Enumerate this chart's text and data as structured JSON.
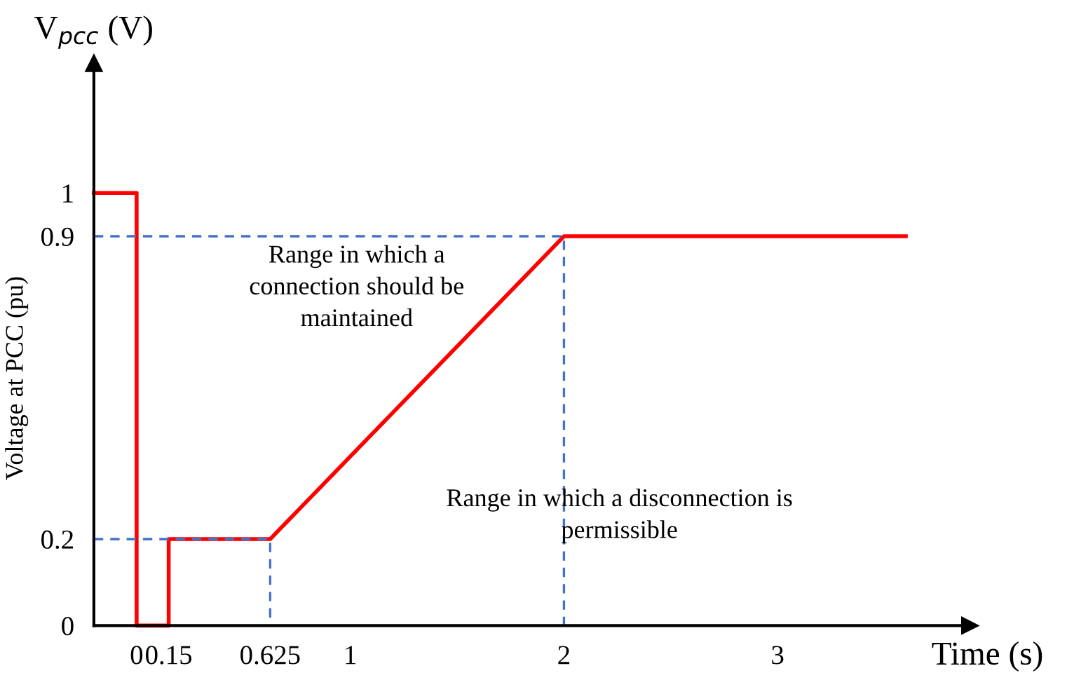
{
  "chart_data": {
    "type": "line",
    "title": "V$_{pcc}$ (V)",
    "xlabel": "Time (s)",
    "ylabel": "Voltage at PCC (pu)",
    "annotations": [
      "Range in which a\nconnection should be\nmaintained",
      "Range in which a disconnection is\npermissible"
    ],
    "xlim": [
      -0.2,
      3.9
    ],
    "ylim": [
      0,
      1.3
    ],
    "xticks": [
      0,
      0.15,
      0.625,
      1,
      2,
      3
    ],
    "yticks": [
      0,
      0.2,
      0.9,
      1
    ],
    "series": [
      {
        "color": "#ff0000",
        "line_style": "solid",
        "x": [
          -0.2,
          0,
          0,
          0.15,
          0.15,
          0.625,
          2,
          3.6
        ],
        "values": [
          1,
          1,
          0,
          0,
          0.2,
          0.2,
          0.9,
          0.9
        ]
      },
      {
        "color": "#4472c4",
        "line_style": "dashed",
        "x": [
          -0.2,
          2,
          2
        ],
        "values": [
          0.9,
          0.9,
          0
        ]
      },
      {
        "color": "#4472c4",
        "line_style": "dashed",
        "x": [
          -0.2,
          0.625,
          0.625
        ],
        "values": [
          0.2,
          0.2,
          0
        ]
      }
    ]
  }
}
